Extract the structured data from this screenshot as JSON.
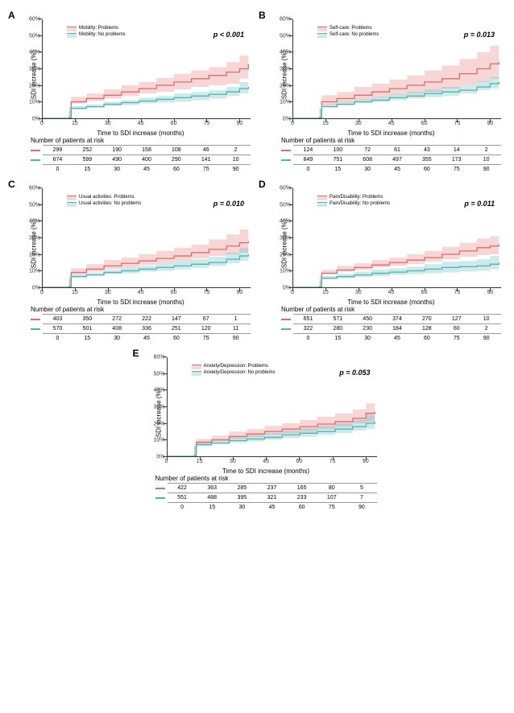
{
  "colors": {
    "problems_line": "#e26a6a",
    "problems_fill": "rgba(226,106,106,0.28)",
    "noproblems_line": "#4fb3b3",
    "noproblems_fill": "rgba(79,179,179,0.28)",
    "axis": "#333333",
    "background": "#ffffff"
  },
  "global": {
    "ylabel": "SDI increase (%)",
    "xlabel": "Time to SDI increase (months)",
    "risk_title": "Number of patients at risk",
    "ylim": [
      0,
      60
    ],
    "yticks": [
      0,
      10,
      20,
      30,
      40,
      50,
      60
    ],
    "ytick_labels": [
      "0%",
      "10%",
      "20%",
      "30%",
      "40%",
      "50%",
      "60%"
    ],
    "xlim": [
      0,
      95
    ],
    "xticks": [
      0,
      15,
      30,
      45,
      60,
      75,
      90
    ],
    "chart_font_size": 8,
    "tick_font_size": 7
  },
  "panels": [
    {
      "id": "A",
      "legend_problems": "Mobility: Problems",
      "legend_noproblems": "Mobility: No problems",
      "pvalue_label": "p < 0.001",
      "series_problems": [
        0,
        0.5,
        10,
        12,
        14,
        16,
        18,
        20,
        22,
        24,
        26,
        28,
        30,
        33
      ],
      "series_noproblems": [
        0,
        0.3,
        6,
        7,
        8.5,
        9.5,
        10.5,
        11.5,
        12.5,
        13.5,
        14.5,
        16,
        18,
        19
      ],
      "ci_problems_lo": [
        0,
        0,
        7,
        9,
        10.5,
        12,
        13.5,
        15,
        16,
        17.5,
        19,
        20,
        21,
        24
      ],
      "ci_problems_hi": [
        0,
        1,
        13,
        15,
        17.5,
        20,
        22,
        24.5,
        27,
        29,
        31,
        34,
        38,
        42
      ],
      "ci_noproblems_lo": [
        0,
        0,
        4.5,
        5.5,
        6.5,
        7.5,
        8,
        9,
        9.5,
        10,
        11,
        12,
        13.5,
        15
      ],
      "ci_noproblems_hi": [
        0,
        0.6,
        7.5,
        8.5,
        10,
        11,
        12.5,
        13.5,
        15,
        16,
        17,
        19,
        22,
        24
      ],
      "risk_problems": [
        299,
        252,
        190,
        158,
        108,
        46,
        2
      ],
      "risk_noproblems": [
        674,
        599,
        490,
        400,
        290,
        141,
        10
      ]
    },
    {
      "id": "B",
      "legend_problems": "Self-care: Problems",
      "legend_noproblems": "Self-care: No problems",
      "pvalue_label": "p = 0.013",
      "series_problems": [
        0,
        0.5,
        10,
        12,
        14,
        16,
        18,
        20,
        22,
        24,
        27,
        30,
        33,
        34
      ],
      "series_noproblems": [
        0,
        0.3,
        7,
        8.5,
        10,
        11,
        12.5,
        13.5,
        15,
        16,
        17,
        19,
        21,
        22
      ],
      "ci_problems_lo": [
        0,
        0,
        6,
        8,
        9.5,
        11,
        12.5,
        14,
        15,
        16,
        18,
        20,
        22,
        24
      ],
      "ci_problems_hi": [
        0,
        1,
        14,
        16,
        19,
        21,
        23.5,
        26,
        29,
        32,
        36,
        40,
        44,
        46
      ],
      "ci_noproblems_lo": [
        0,
        0,
        5.5,
        6.8,
        8,
        9,
        10,
        11,
        12,
        12.8,
        13.5,
        15,
        17,
        18
      ],
      "ci_noproblems_hi": [
        0,
        0.6,
        8.5,
        10,
        11.5,
        13,
        14.5,
        16,
        17.5,
        19,
        20,
        22.5,
        25,
        26
      ],
      "risk_problems": [
        124,
        100,
        72,
        61,
        43,
        14,
        2
      ],
      "risk_noproblems": [
        849,
        751,
        608,
        497,
        355,
        173,
        10
      ]
    },
    {
      "id": "C",
      "legend_problems": "Usual activities: Problems",
      "legend_noproblems": "Usual activities: No problems",
      "pvalue_label": "p = 0.010",
      "series_problems": [
        0,
        0.5,
        9,
        11,
        13,
        14.5,
        16,
        17.5,
        19,
        21,
        23,
        25,
        27,
        28
      ],
      "series_noproblems": [
        0,
        0.3,
        6.5,
        7.5,
        9,
        10,
        11,
        12,
        13,
        14,
        15,
        17,
        19,
        20
      ],
      "ci_problems_lo": [
        0,
        0,
        6.5,
        8,
        9.5,
        11,
        12,
        13.5,
        14.5,
        16,
        17.5,
        19,
        20,
        21
      ],
      "ci_problems_hi": [
        0,
        1,
        11.5,
        14,
        16.5,
        18,
        20,
        22,
        24,
        26,
        29,
        32,
        35,
        36
      ],
      "ci_noproblems_lo": [
        0,
        0,
        5,
        6,
        7,
        8,
        8.5,
        9.5,
        10,
        11,
        11.8,
        13,
        14.5,
        16
      ],
      "ci_noproblems_hi": [
        0,
        0.6,
        8,
        9,
        10.5,
        12,
        13,
        14.5,
        16,
        17,
        18.5,
        21,
        24,
        25
      ],
      "risk_problems": [
        403,
        350,
        272,
        222,
        147,
        67,
        1
      ],
      "risk_noproblems": [
        570,
        501,
        408,
        336,
        251,
        120,
        11
      ]
    },
    {
      "id": "D",
      "legend_problems": "Pain/Disability: Problems",
      "legend_noproblems": "Pain/Disability: No problems",
      "pvalue_label": "p = 0.011",
      "series_problems": [
        0,
        0.5,
        8.5,
        10.5,
        12,
        13.5,
        15,
        16.5,
        18,
        20,
        22,
        24,
        25,
        26
      ],
      "series_noproblems": [
        0,
        0.3,
        5.5,
        6.5,
        7.5,
        8.5,
        9.2,
        10,
        11,
        12,
        12.5,
        13,
        14,
        15
      ],
      "ci_problems_lo": [
        0,
        0,
        6.5,
        8,
        9.5,
        10.5,
        12,
        13,
        14,
        15.5,
        17,
        18.5,
        19.5,
        20
      ],
      "ci_problems_hi": [
        0,
        1,
        10.5,
        13,
        14.5,
        16.5,
        18,
        20,
        22,
        24.5,
        27,
        29.5,
        31,
        32
      ],
      "ci_noproblems_lo": [
        0,
        0,
        4,
        4.8,
        5.5,
        6.2,
        6.8,
        7.5,
        8,
        8.5,
        9,
        9.5,
        10,
        11
      ],
      "ci_noproblems_hi": [
        0,
        0.6,
        7,
        8.2,
        9.5,
        10.8,
        11.5,
        12.5,
        14,
        15.5,
        16,
        17,
        19,
        20
      ],
      "risk_problems": [
        651,
        571,
        450,
        374,
        270,
        127,
        10
      ],
      "risk_noproblems": [
        322,
        280,
        230,
        184,
        128,
        60,
        2
      ]
    },
    {
      "id": "E",
      "legend_problems": "Anxiety/Depression: Problems",
      "legend_noproblems": "Anxiety/Depression: No problems",
      "pvalue_label": "p = 0.053",
      "series_problems": [
        0,
        0.5,
        8.5,
        10,
        12,
        13.5,
        15,
        16.5,
        18,
        19.5,
        21,
        23,
        26,
        27
      ],
      "series_noproblems": [
        0,
        0.3,
        7,
        8,
        9.5,
        10.5,
        11.5,
        13,
        14,
        15,
        16.5,
        18,
        20,
        21
      ],
      "ci_problems_lo": [
        0,
        0,
        6.5,
        7.5,
        9,
        10.5,
        11.5,
        13,
        14,
        15,
        16.5,
        18,
        20,
        21
      ],
      "ci_problems_hi": [
        0,
        1,
        10.5,
        12.5,
        15,
        16.5,
        18.5,
        20,
        22,
        24,
        26,
        28.5,
        32,
        34
      ],
      "ci_noproblems_lo": [
        0,
        0,
        5.5,
        6.2,
        7.5,
        8.2,
        9,
        10,
        11,
        11.8,
        13,
        14,
        15.5,
        16.5
      ],
      "ci_noproblems_hi": [
        0,
        0.6,
        8.5,
        9.8,
        11.5,
        12.8,
        14,
        15.5,
        17,
        18.5,
        20,
        22,
        25,
        27
      ],
      "risk_problems": [
        422,
        363,
        285,
        237,
        165,
        80,
        5
      ],
      "risk_noproblems": [
        551,
        488,
        395,
        321,
        233,
        107,
        7
      ]
    }
  ]
}
